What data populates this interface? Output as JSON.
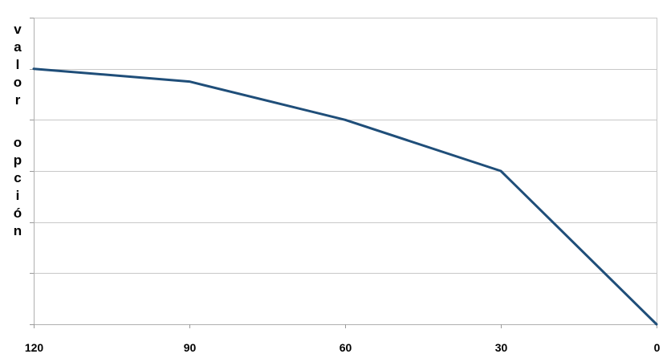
{
  "chart_data": {
    "type": "line",
    "title": "",
    "xlabel": "",
    "ylabel": "valor opción",
    "x": [
      120,
      90,
      60,
      30,
      0
    ],
    "x_tick_labels": [
      "120",
      "90",
      "60",
      "30",
      "0"
    ],
    "x_reversed": true,
    "xlim": [
      120,
      0
    ],
    "ylim": [
      0,
      6
    ],
    "y_tick_labels_shown": false,
    "grid": true,
    "legend": "none",
    "series": [
      {
        "values": [
          5.0,
          4.75,
          4.0,
          3.0,
          0.0
        ],
        "color": "#1f4e79"
      }
    ]
  }
}
